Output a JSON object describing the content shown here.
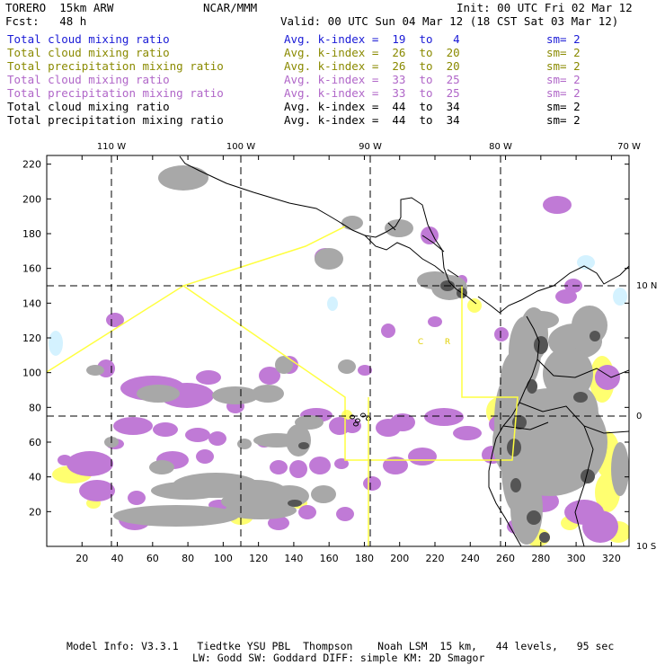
{
  "header": {
    "model": "TORERO  15km ARW",
    "org": "NCAR/MMM",
    "init": "Init: 00 UTC Fri 02 Mar 12",
    "fcst": "Fcst:   48 h",
    "valid": "Valid: 00 UTC Sun 04 Mar 12 (18 CST Sat 03 Mar 12)"
  },
  "legend": [
    {
      "field": "Total cloud mixing ratio",
      "kindex": "Avg. k-index =  19  to   4",
      "sm": "sm= 2",
      "color": "#1a1ad6"
    },
    {
      "field": "Total cloud mixing ratio",
      "kindex": "Avg. k-index =  26  to  20",
      "sm": "sm= 2",
      "color": "#8a8a00"
    },
    {
      "field": "Total precipitation mixing ratio",
      "kindex": "Avg. k-index =  26  to  20",
      "sm": "sm= 2",
      "color": "#8a8a00"
    },
    {
      "field": "Total cloud mixing ratio",
      "kindex": "Avg. k-index =  33  to  25",
      "sm": "sm= 2",
      "color": "#b066c8"
    },
    {
      "field": "Total precipitation mixing ratio",
      "kindex": "Avg. k-index =  33  to  25",
      "sm": "sm= 2",
      "color": "#b066c8"
    },
    {
      "field": "Total cloud mixing ratio",
      "kindex": "Avg. k-index =  44  to  34",
      "sm": "sm= 2",
      "color": "#000000"
    },
    {
      "field": "Total precipitation mixing ratio",
      "kindex": "Avg. k-index =  44  to  34",
      "sm": "sm= 2",
      "color": "#000000"
    }
  ],
  "lon_labels": [
    "110 W",
    "100 W",
    "90 W",
    "80 W",
    "70 W"
  ],
  "lat_labels": [
    "10 N",
    "0",
    "10 S"
  ],
  "x_axis": {
    "ticks": [
      20,
      40,
      60,
      80,
      100,
      120,
      140,
      160,
      180,
      200,
      220,
      240,
      260,
      280,
      300,
      320
    ]
  },
  "y_axis": {
    "ticks": [
      20,
      40,
      60,
      80,
      100,
      120,
      140,
      160,
      180,
      200,
      220
    ]
  },
  "domain_labels": [
    "C",
    "R"
  ],
  "footer": {
    "line1": "Model Info: V3.3.1   Tiedtke YSU PBL  Thompson    Noah LSM  15 km,   44 levels,   95 sec",
    "line2": "LW: Godd SW: Goddard DIFF: simple KM: 2D Smagor"
  },
  "colors": {
    "cloud_gray": "#a8a8a8",
    "dark_gray": "#555555",
    "purple": "#c07ad6",
    "yellow": "#ffff70",
    "light_blue": "#d4f2ff",
    "domain_line": "#ffff40"
  }
}
